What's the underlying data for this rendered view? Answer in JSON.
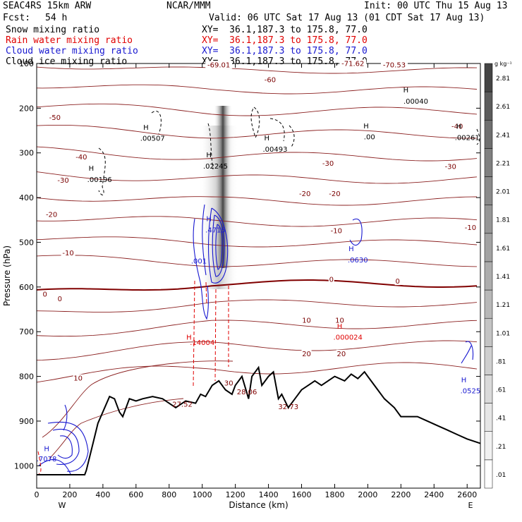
{
  "header": {
    "model": "SEAC4RS 15km ARW",
    "center": "NCAR/MMM",
    "init": "Init: 00 UTC Thu 15 Aug 13",
    "fcst_label": "Fcst:",
    "fcst_value": "54 h",
    "valid": "Valid: 06 UTC Sat 17 Aug 13 (01 CDT Sat 17 Aug 13)"
  },
  "fields": [
    {
      "name": "Snow mixing ratio",
      "xy": "XY=  36.1,187.3 to 175.8, 77.0",
      "color": "#000000"
    },
    {
      "name": "Rain water mixing ratio",
      "xy": "XY=  36.1,187.3 to 175.8, 77.0",
      "color": "#e00000"
    },
    {
      "name": "Cloud water mixing ratio",
      "xy": "XY=  36.1,187.3 to 175.8, 77.0",
      "color": "#1818d0"
    },
    {
      "name": "Cloud ice mixing ratio",
      "xy": "XY=  36.1,187.3 to 175.8, 77.0",
      "color": "#000000"
    }
  ],
  "chart_data": {
    "type": "contour_cross_section",
    "xlabel": "Distance (km)",
    "ylabel": "Pressure (hPa)",
    "xlim": [
      0,
      2680
    ],
    "ylim": [
      1050,
      100
    ],
    "xticks": [
      0,
      200,
      400,
      600,
      800,
      1000,
      1200,
      1400,
      1600,
      1800,
      2000,
      2200,
      2400,
      2600
    ],
    "yticks": [
      100,
      200,
      300,
      400,
      500,
      600,
      700,
      800,
      900,
      1000
    ],
    "x_end_labels": {
      "left": "W",
      "right": "E"
    },
    "colorbar": {
      "unit": "g kg⁻¹",
      "levels": [
        ".01",
        ".21",
        ".41",
        ".61",
        ".81",
        "1.01",
        "1.21",
        "1.41",
        "1.61",
        "1.81",
        "2.01",
        "2.21",
        "2.41",
        "2.61",
        "2.81"
      ],
      "colors": [
        "#ffffff",
        "#f1f1f1",
        "#e6e6e6",
        "#dadada",
        "#cfcfcf",
        "#c4c4c4",
        "#b8b8b8",
        "#adadad",
        "#a2a2a2",
        "#969696",
        "#8b8b8b",
        "#808080",
        "#6f6f6f",
        "#5c5c5c",
        "#454545"
      ]
    },
    "temperature_contour_labels": [
      {
        "text": "-69.01",
        "x": 1100,
        "p": 107
      },
      {
        "text": "-71.62",
        "x": 1910,
        "p": 104
      },
      {
        "text": "-70.53",
        "x": 2160,
        "p": 107
      },
      {
        "text": "-60",
        "x": 1410,
        "p": 140
      },
      {
        "text": "-50",
        "x": 110,
        "p": 225
      },
      {
        "text": "-40",
        "x": 270,
        "p": 313
      },
      {
        "text": "-40",
        "x": 2540,
        "p": 244
      },
      {
        "text": "-30",
        "x": 160,
        "p": 365
      },
      {
        "text": "-30",
        "x": 1760,
        "p": 327
      },
      {
        "text": "-30",
        "x": 2500,
        "p": 334
      },
      {
        "text": "-20",
        "x": 1620,
        "p": 395
      },
      {
        "text": "-20",
        "x": 1800,
        "p": 395
      },
      {
        "text": "-20",
        "x": 90,
        "p": 442
      },
      {
        "text": "-10",
        "x": 1810,
        "p": 478
      },
      {
        "text": "-10",
        "x": 2620,
        "p": 471
      },
      {
        "text": "-10",
        "x": 190,
        "p": 528
      },
      {
        "text": "0",
        "x": 50,
        "p": 620
      },
      {
        "text": "0",
        "x": 140,
        "p": 630
      },
      {
        "text": "0",
        "x": 1780,
        "p": 587
      },
      {
        "text": "0",
        "x": 2180,
        "p": 591
      },
      {
        "text": "10",
        "x": 1630,
        "p": 678
      },
      {
        "text": "10",
        "x": 1830,
        "p": 678
      },
      {
        "text": "10",
        "x": 250,
        "p": 808
      },
      {
        "text": "20",
        "x": 1630,
        "p": 753
      },
      {
        "text": "20",
        "x": 1840,
        "p": 753
      },
      {
        "text": "30",
        "x": 1160,
        "p": 819
      }
    ],
    "extremum_labels": [
      {
        "text": "H",
        "x": 660,
        "p": 248,
        "color": "#000000"
      },
      {
        "text": ".00507",
        "x": 700,
        "p": 273,
        "color": "#000000"
      },
      {
        "text": "H",
        "x": 330,
        "p": 340,
        "color": "#000000"
      },
      {
        "text": ".00196",
        "x": 380,
        "p": 365,
        "color": "#000000"
      },
      {
        "text": "H",
        "x": 1040,
        "p": 310,
        "color": "#000000"
      },
      {
        "text": ".02245",
        "x": 1080,
        "p": 335,
        "color": "#000000"
      },
      {
        "text": "H",
        "x": 1390,
        "p": 272,
        "color": "#000000"
      },
      {
        "text": ".00493",
        "x": 1440,
        "p": 297,
        "color": "#000000"
      },
      {
        "text": "H",
        "x": 2230,
        "p": 165,
        "color": "#000000"
      },
      {
        "text": ".00040",
        "x": 2290,
        "p": 190,
        "color": "#000000"
      },
      {
        "text": "H",
        "x": 1990,
        "p": 245,
        "color": "#000000"
      },
      {
        "text": ".00",
        "x": 2010,
        "p": 270,
        "color": "#000000"
      },
      {
        "text": "H",
        "x": 2550,
        "p": 246,
        "color": "#000000"
      },
      {
        "text": ".00261",
        "x": 2600,
        "p": 271,
        "color": "#000000"
      },
      {
        "text": "H",
        "x": 1040,
        "p": 453,
        "color": "#1818d0"
      },
      {
        "text": ".4715",
        "x": 1080,
        "p": 478,
        "color": "#1818d0"
      },
      {
        "text": ".001",
        "x": 980,
        "p": 547,
        "color": "#1818d0"
      },
      {
        "text": "H",
        "x": 1900,
        "p": 520,
        "color": "#1818d0"
      },
      {
        "text": ".0630",
        "x": 1940,
        "p": 545,
        "color": "#1818d0"
      },
      {
        "text": "H",
        "x": 2580,
        "p": 813,
        "color": "#1818d0"
      },
      {
        "text": ".0525",
        "x": 2620,
        "p": 838,
        "color": "#1818d0"
      },
      {
        "text": "H",
        "x": 60,
        "p": 967,
        "color": "#1818d0"
      },
      {
        "text": ".7078",
        "x": 60,
        "p": 990,
        "color": "#1818d0"
      },
      {
        "text": "H",
        "x": 920,
        "p": 718,
        "color": "#e00000"
      },
      {
        "text": ".14004",
        "x": 1000,
        "p": 730,
        "color": "#e00000"
      },
      {
        "text": "H",
        "x": 1830,
        "p": 693,
        "color": "#e00000"
      },
      {
        "text": ".000024",
        "x": 1880,
        "p": 718,
        "color": "#e00000"
      },
      {
        "text": "27.52",
        "x": 880,
        "p": 868,
        "color": "#800000"
      },
      {
        "text": "28.06",
        "x": 1270,
        "p": 840,
        "color": "#800000"
      },
      {
        "text": "32.73",
        "x": 1520,
        "p": 873,
        "color": "#800000"
      }
    ]
  }
}
